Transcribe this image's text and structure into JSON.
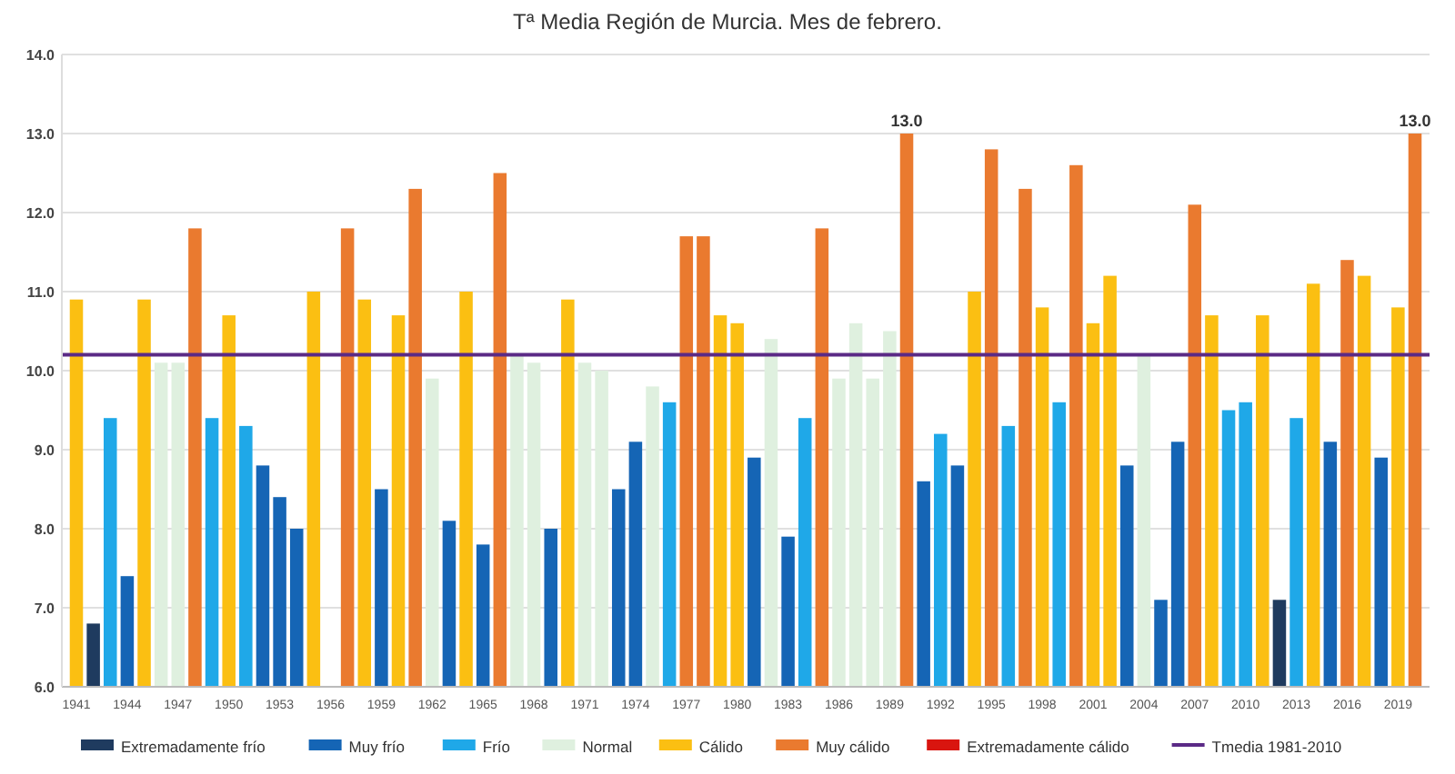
{
  "chart_data": {
    "type": "bar",
    "title": "Tª Media Región de Murcia. Mes de febrero.",
    "legend": "bottom",
    "grid": "y",
    "categories": [
      "1941",
      null,
      null,
      "1944",
      null,
      null,
      "1947",
      null,
      null,
      "1950",
      null,
      null,
      "1953",
      null,
      null,
      "1956",
      null,
      null,
      "1959",
      null,
      null,
      "1962",
      null,
      null,
      "1965",
      null,
      null,
      "1968",
      null,
      null,
      "1971",
      null,
      null,
      "1974",
      null,
      null,
      "1977",
      null,
      null,
      "1980",
      null,
      null,
      "1983",
      null,
      null,
      "1986",
      null,
      null,
      "1989",
      null,
      null,
      "1992",
      null,
      null,
      "1995",
      null,
      null,
      "1998",
      null,
      null,
      "2001",
      null,
      null,
      "2004",
      null,
      null,
      "2007",
      null,
      null,
      "2010",
      null,
      null,
      "2013",
      null,
      null,
      "2016",
      null,
      null,
      "2019",
      null
    ],
    "ylim": [
      6,
      14
    ],
    "yticks": [
      {
        "value": 6,
        "label": "6.0"
      },
      {
        "value": 7,
        "label": "7.0"
      },
      {
        "value": 8,
        "label": "8.0"
      },
      {
        "value": 9,
        "label": "9.0"
      },
      {
        "value": 10,
        "label": "10.0"
      },
      {
        "value": 11,
        "label": "11.0"
      },
      {
        "value": 12,
        "label": "12.0"
      },
      {
        "value": 13,
        "label": "13.0"
      },
      {
        "value": 14,
        "label": "14.0"
      }
    ],
    "series": [
      {
        "name": "Extremadamente frío",
        "color": "#1f3b5f",
        "values": [
          null,
          6.8,
          null,
          null,
          null,
          null,
          null,
          null,
          null,
          null,
          null,
          null,
          null,
          null,
          null,
          null,
          null,
          null,
          null,
          null,
          null,
          null,
          null,
          null,
          null,
          null,
          null,
          null,
          null,
          null,
          null,
          null,
          null,
          null,
          null,
          null,
          null,
          null,
          null,
          null,
          null,
          null,
          null,
          null,
          null,
          null,
          null,
          null,
          null,
          null,
          null,
          null,
          null,
          null,
          null,
          null,
          null,
          null,
          null,
          null,
          null,
          null,
          null,
          null,
          null,
          null,
          null,
          null,
          null,
          null,
          null,
          7.1,
          null,
          null,
          null,
          null,
          null,
          null,
          null,
          null
        ]
      },
      {
        "name": "Muy frío",
        "color": "#1565b5",
        "values": [
          null,
          null,
          null,
          7.4,
          null,
          null,
          null,
          null,
          null,
          null,
          null,
          8.8,
          8.4,
          8.0,
          null,
          null,
          null,
          null,
          8.5,
          null,
          null,
          null,
          8.1,
          null,
          7.8,
          null,
          null,
          null,
          8.0,
          null,
          null,
          null,
          8.5,
          9.1,
          null,
          null,
          null,
          null,
          null,
          null,
          8.9,
          null,
          7.9,
          null,
          null,
          null,
          null,
          null,
          null,
          null,
          8.6,
          null,
          8.8,
          null,
          null,
          null,
          null,
          null,
          null,
          null,
          null,
          null,
          8.8,
          null,
          7.1,
          9.1,
          null,
          null,
          null,
          null,
          null,
          null,
          null,
          null,
          9.1,
          null,
          null,
          8.9,
          null,
          null
        ]
      },
      {
        "name": "Frío",
        "color": "#1fa8e8",
        "values": [
          null,
          null,
          9.4,
          null,
          null,
          null,
          null,
          null,
          9.4,
          null,
          9.3,
          null,
          null,
          null,
          null,
          null,
          null,
          null,
          null,
          null,
          null,
          null,
          null,
          null,
          null,
          null,
          null,
          null,
          null,
          null,
          null,
          null,
          null,
          null,
          null,
          9.6,
          null,
          null,
          null,
          null,
          null,
          null,
          null,
          9.4,
          null,
          null,
          null,
          null,
          null,
          null,
          null,
          9.2,
          null,
          null,
          null,
          9.3,
          null,
          null,
          9.6,
          null,
          null,
          null,
          null,
          null,
          null,
          null,
          null,
          null,
          9.5,
          9.6,
          null,
          null,
          9.4,
          null,
          null,
          null,
          null,
          null,
          null,
          null
        ]
      },
      {
        "name": "Normal",
        "color": "#dff0df",
        "values": [
          null,
          null,
          null,
          null,
          null,
          10.1,
          10.1,
          null,
          null,
          null,
          null,
          null,
          null,
          null,
          null,
          null,
          null,
          null,
          null,
          null,
          null,
          9.9,
          null,
          null,
          null,
          null,
          10.2,
          10.1,
          null,
          null,
          10.1,
          10.0,
          null,
          null,
          9.8,
          null,
          null,
          null,
          null,
          null,
          null,
          10.4,
          null,
          null,
          null,
          9.9,
          10.6,
          9.9,
          10.5,
          null,
          null,
          null,
          null,
          null,
          null,
          null,
          null,
          null,
          null,
          null,
          null,
          null,
          null,
          10.2,
          null,
          null,
          null,
          null,
          null,
          null,
          null,
          null,
          null,
          null,
          null,
          null,
          null,
          null,
          null,
          null
        ]
      },
      {
        "name": "Cálido",
        "color": "#fbbf12",
        "values": [
          10.9,
          null,
          null,
          null,
          10.9,
          null,
          null,
          null,
          null,
          10.7,
          null,
          null,
          null,
          null,
          11.0,
          null,
          null,
          10.9,
          null,
          10.7,
          null,
          null,
          null,
          11.0,
          null,
          null,
          null,
          null,
          null,
          10.9,
          null,
          null,
          null,
          null,
          null,
          null,
          null,
          null,
          10.7,
          10.6,
          null,
          null,
          null,
          null,
          null,
          null,
          null,
          null,
          null,
          null,
          null,
          null,
          null,
          11.0,
          null,
          null,
          null,
          10.8,
          null,
          null,
          10.6,
          11.2,
          null,
          null,
          null,
          null,
          null,
          10.7,
          null,
          null,
          10.7,
          null,
          null,
          11.1,
          null,
          null,
          11.2,
          null,
          10.8,
          null
        ]
      },
      {
        "name": "Muy cálido",
        "color": "#ea7a2f",
        "values": [
          null,
          null,
          null,
          null,
          null,
          null,
          null,
          11.8,
          null,
          null,
          null,
          null,
          null,
          null,
          null,
          null,
          11.8,
          null,
          null,
          null,
          12.3,
          null,
          null,
          null,
          null,
          12.5,
          null,
          null,
          null,
          null,
          null,
          null,
          null,
          null,
          null,
          null,
          11.7,
          11.7,
          null,
          null,
          null,
          null,
          null,
          null,
          11.8,
          null,
          null,
          null,
          null,
          13.0,
          null,
          null,
          null,
          null,
          12.8,
          null,
          12.3,
          null,
          null,
          12.6,
          null,
          null,
          null,
          null,
          null,
          null,
          12.1,
          null,
          null,
          null,
          null,
          null,
          null,
          null,
          null,
          11.4,
          null,
          null,
          null,
          13.0
        ],
        "value_labels": [
          null,
          null,
          null,
          null,
          null,
          null,
          null,
          null,
          null,
          null,
          null,
          null,
          null,
          null,
          null,
          null,
          null,
          null,
          null,
          null,
          null,
          null,
          null,
          null,
          null,
          null,
          null,
          null,
          null,
          null,
          null,
          null,
          null,
          null,
          null,
          null,
          null,
          null,
          null,
          null,
          null,
          null,
          null,
          null,
          null,
          null,
          null,
          null,
          null,
          "13.0",
          null,
          null,
          null,
          null,
          null,
          null,
          null,
          null,
          null,
          null,
          null,
          null,
          null,
          null,
          null,
          null,
          null,
          null,
          null,
          null,
          null,
          null,
          null,
          null,
          null,
          null,
          null,
          null,
          null,
          "13.0"
        ]
      },
      {
        "name": "Extremadamente cálido",
        "color": "#d9150f",
        "values": [
          null,
          null,
          null,
          null,
          null,
          null,
          null,
          null,
          null,
          null,
          null,
          null,
          null,
          null,
          null,
          null,
          null,
          null,
          null,
          null,
          null,
          null,
          null,
          null,
          null,
          null,
          null,
          null,
          null,
          null,
          null,
          null,
          null,
          null,
          null,
          null,
          null,
          null,
          null,
          null,
          null,
          null,
          null,
          null,
          null,
          null,
          null,
          null,
          null,
          null,
          null,
          null,
          null,
          null,
          null,
          null,
          null,
          null,
          null,
          null,
          null,
          null,
          null,
          null,
          null,
          null,
          null,
          null,
          null,
          null,
          null,
          null,
          null,
          null,
          null,
          null,
          null,
          null,
          null,
          null
        ]
      }
    ],
    "ref_lines": [
      {
        "axis": "y",
        "value": 10.2,
        "label": "Tmedia 1981-2010",
        "color": "#5b2a86"
      }
    ]
  }
}
